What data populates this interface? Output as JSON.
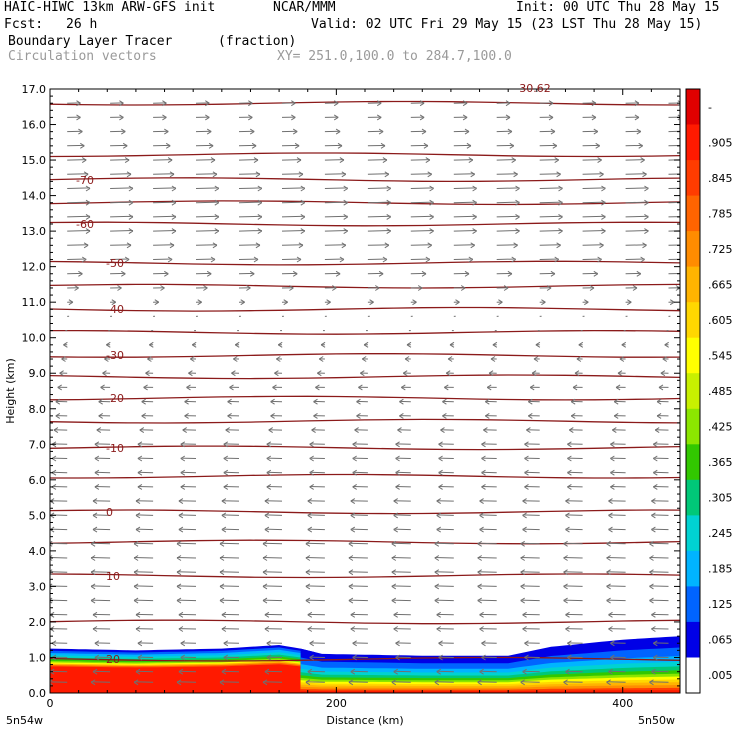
{
  "header": {
    "model": "HAIC-HIWC 13km ARW-GFS init",
    "org": "NCAR/MMM",
    "init": "Init: 00 UTC Thu 28 May 15",
    "fcst_label": "Fcst:",
    "fcst_value": "26 h",
    "valid": "Valid: 02 UTC Fri 29 May 15 (23 LST Thu 28 May 15)",
    "field": "Boundary Layer Tracer",
    "units": "(fraction)",
    "overlay": "Circulation vectors",
    "xy": "XY= 251.0,100.0 to 284.7,100.0"
  },
  "chart_data": {
    "type": "heatmap",
    "xlabel": "Distance (km)",
    "ylabel": "Height (km)",
    "xlim": [
      0,
      440
    ],
    "ylim": [
      0,
      17
    ],
    "x_ticks": [
      0,
      200,
      400
    ],
    "x_tick_labels": [
      "0",
      "200",
      "400"
    ],
    "y_ticks": [
      0,
      1,
      2,
      3,
      4,
      5,
      6,
      7,
      8,
      9,
      10,
      11,
      12,
      13,
      14,
      15,
      16,
      17
    ],
    "y_tick_labels": [
      "0.0",
      "1.0",
      "2.0",
      "3.0",
      "4.0",
      "5.0",
      "6.0",
      "7.0",
      "8.0",
      "9.0",
      "10.0",
      "11.0",
      "12.0",
      "13.0",
      "14.0",
      "15.0",
      "16.0",
      "17.0"
    ],
    "x_endpoint_labels": [
      "5n54w",
      "5n50w"
    ],
    "top_annotation": "30.62",
    "colorbar": {
      "labels": [
        "-",
        ".905",
        ".845",
        ".785",
        ".725",
        ".665",
        ".605",
        ".545",
        ".485",
        ".425",
        ".365",
        ".305",
        ".245",
        ".185",
        ".125",
        ".065",
        ".005"
      ],
      "colors": [
        "#e00000",
        "#ff1a00",
        "#ff3c00",
        "#ff6400",
        "#ff8c00",
        "#ffb400",
        "#ffd700",
        "#ffff00",
        "#c8f000",
        "#8ce600",
        "#32c800",
        "#00c878",
        "#00d2d2",
        "#00b4ff",
        "#0064ff",
        "#0000e6",
        "#ffffff"
      ]
    },
    "temperature_contours": {
      "color": "#8b1a1a",
      "levels": [
        {
          "label": "-70",
          "z": 14.45
        },
        {
          "label": "-60",
          "z": 13.2
        },
        {
          "label": "-50",
          "z": 12.1
        },
        {
          "label": "-40",
          "z": 10.8
        },
        {
          "label": "-30",
          "z": 9.5
        },
        {
          "label": "-20",
          "z": 8.3
        },
        {
          "label": "-10",
          "z": 6.9
        },
        {
          "label": "0",
          "z": 5.1
        },
        {
          "label": "10",
          "z": 3.3
        },
        {
          "label": "20",
          "z": 0.95
        }
      ],
      "unlabeled_z": [
        16.6,
        15.15,
        13.8,
        11.45,
        10.15,
        8.9,
        7.65,
        6.1,
        4.25,
        2.0
      ]
    },
    "tracer_layer": {
      "x": [
        0,
        60,
        120,
        160,
        175,
        190,
        260,
        320,
        350,
        400,
        440
      ],
      "top_z": [
        1.25,
        1.2,
        1.25,
        1.35,
        1.25,
        1.1,
        1.05,
        1.05,
        1.3,
        1.5,
        1.6
      ],
      "high_tracer_x_end": 185
    },
    "wind_vectors": {
      "levels_z": [
        16.6,
        16.2,
        15.8,
        15.4,
        15.0,
        14.6,
        14.2,
        13.8,
        13.4,
        13.0,
        12.6,
        12.2,
        11.8,
        11.4,
        11.0,
        10.6,
        10.2,
        9.8,
        9.4,
        9.0,
        8.6,
        8.2,
        7.8,
        7.4,
        7.0,
        6.6,
        6.2,
        5.8,
        5.4,
        5.0,
        4.6,
        4.2,
        3.8,
        3.4,
        3.0,
        2.6,
        2.2,
        1.8,
        1.4,
        1.0,
        0.6,
        0.3
      ],
      "u": [
        7,
        7,
        8,
        9,
        10,
        11,
        12,
        12,
        12,
        12,
        11,
        10,
        8,
        6,
        3,
        1,
        -1,
        -2,
        -3,
        -4,
        -5,
        -6,
        -6,
        -7,
        -8,
        -8,
        -8,
        -8,
        -9,
        -9,
        -9,
        -10,
        -10,
        -10,
        -10,
        -10,
        -9,
        -9,
        -8,
        -8,
        -9,
        -10
      ],
      "x_spacing_km": 30
    }
  }
}
